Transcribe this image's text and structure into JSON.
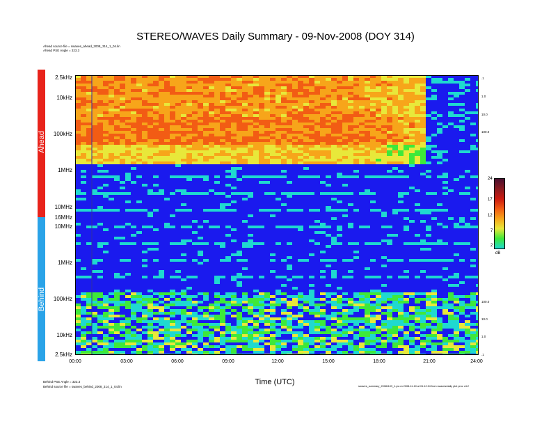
{
  "title": "STEREO/WAVES Daily Summary - 09-Nov-2008 (DOY 314)",
  "ahead_info": [
    "Ahead source file = swaves_ahead_2008_314_1_04.lin",
    "Ahead PSE Angle = 323.3"
  ],
  "behind_info": [
    "Behind PSE Angle = 323.3",
    "Behind source file = swaves_behind_2008_314_1_04.lin"
  ],
  "footer_right": "swaves_summary_20081109_1.ps on 2008-11-10 at 01:12:34 from swaves/daily plot proc v4.2",
  "side_labels": {
    "ahead": "Ahead",
    "behind": "Behind"
  },
  "colors": {
    "ahead_bar": "#e8231b",
    "behind_bar": "#2aa3e8",
    "background": "#1a1aee"
  },
  "chart_data": {
    "type": "heatmap",
    "title": "STEREO/WAVES Daily Summary - 09-Nov-2008 (DOY 314)",
    "xlabel": "Time (UTC)",
    "x_ticks": [
      "00:00",
      "03:00",
      "06:00",
      "09:00",
      "12:00",
      "15:00",
      "18:00",
      "21:00",
      "24:00"
    ],
    "xlim": [
      "00:00",
      "24:00"
    ],
    "panels": [
      {
        "name": "Ahead",
        "y_ticks": [
          "2.5kHz",
          "10kHz",
          "100kHz",
          "1MHz",
          "10MHz",
          "16MHz"
        ],
        "right_ticks": [
          ".1",
          "1.0",
          "10.0",
          "100.0"
        ]
      },
      {
        "name": "Behind",
        "y_ticks": [
          "10MHz",
          "1MHz",
          "100kHz",
          "10kHz",
          "2.5kHz"
        ],
        "right_ticks": [
          "100.0",
          "10.0",
          "1.0",
          ".1"
        ]
      }
    ],
    "colorbar": {
      "ticks": [
        "24",
        "17",
        "12",
        "7",
        "2"
      ],
      "unit": "dB",
      "range": [
        2,
        24
      ]
    },
    "colors": [
      "#1a1aee",
      "#1fd9d0",
      "#3ee83a",
      "#e8e83a",
      "#f7a51a",
      "#f25c14",
      "#cc1a10",
      "#6a1a4a"
    ]
  }
}
